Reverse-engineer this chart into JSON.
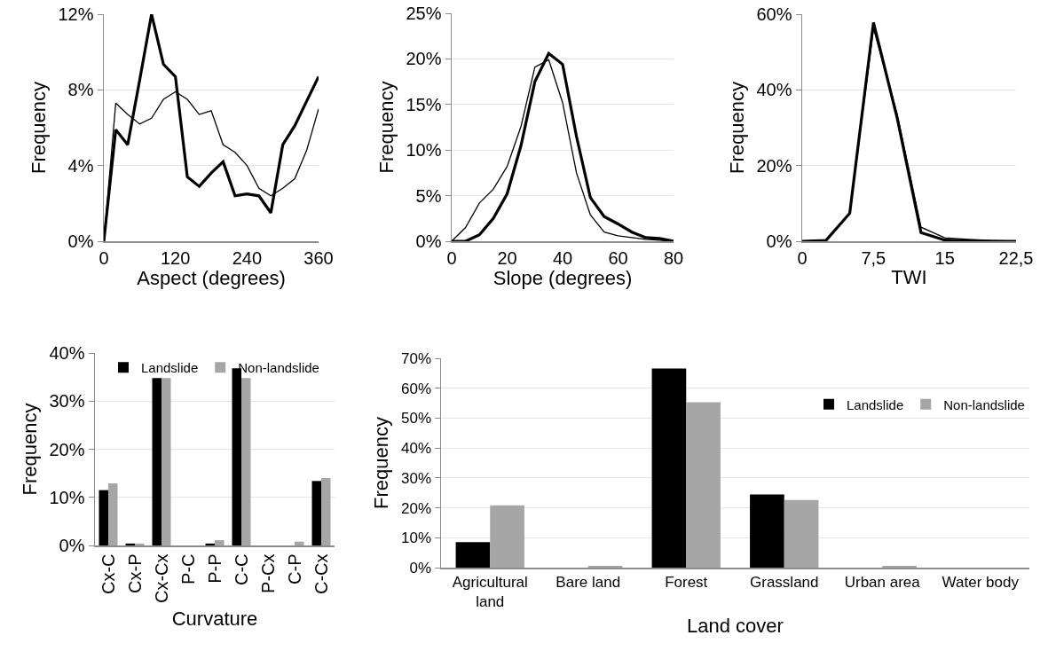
{
  "chart_data": [
    {
      "type": "line",
      "xlabel": "Aspect (degrees)",
      "ylabel": "Frequency",
      "grid": "y",
      "legend": false,
      "x": [
        0,
        20,
        40,
        60,
        80,
        100,
        120,
        140,
        160,
        180,
        200,
        220,
        240,
        260,
        280,
        300,
        320,
        340,
        360
      ],
      "xlim": [
        0,
        360
      ],
      "xticks": [
        0,
        120,
        240,
        360
      ],
      "ylim": [
        0,
        12
      ],
      "yticks": [
        {
          "value": 0,
          "label": "0%"
        },
        {
          "value": 4,
          "label": "4%"
        },
        {
          "value": 8,
          "label": "8%"
        },
        {
          "value": 12,
          "label": "12%"
        }
      ],
      "series": [
        {
          "color": "#000000",
          "values": [
            0,
            5.9,
            5.1,
            8.5,
            12.0,
            9.35,
            8.7,
            3.4,
            2.9,
            3.6,
            4.2,
            2.4,
            2.5,
            2.4,
            1.5,
            5.1,
            6.1,
            7.4,
            8.7
          ]
        },
        {
          "color": "#000000",
          "values": [
            0,
            7.3,
            6.7,
            6.2,
            6.5,
            7.5,
            7.9,
            7.5,
            6.7,
            6.9,
            5.1,
            4.7,
            4.0,
            2.8,
            2.4,
            2.8,
            3.3,
            4.8,
            7.0
          ]
        }
      ]
    },
    {
      "type": "line",
      "xlabel": "Slope (degrees)",
      "ylabel": "Frequency",
      "grid": "y",
      "legend": false,
      "x": [
        0,
        5,
        10,
        15,
        20,
        25,
        30,
        35,
        40,
        45,
        50,
        55,
        60,
        65,
        70,
        75,
        80
      ],
      "xlim": [
        0,
        80
      ],
      "xticks": [
        0,
        20,
        40,
        60,
        80
      ],
      "ylim": [
        0,
        25
      ],
      "yticks": [
        {
          "value": 0,
          "label": "0%"
        },
        {
          "value": 5,
          "label": "5%"
        },
        {
          "value": 10,
          "label": "10%"
        },
        {
          "value": 15,
          "label": "15%"
        },
        {
          "value": 20,
          "label": "20%"
        },
        {
          "value": 25,
          "label": "25%"
        }
      ],
      "series": [
        {
          "color": "#000000",
          "values": [
            0,
            0,
            0.7,
            2.5,
            5.2,
            10.5,
            17.5,
            20.6,
            19.4,
            11.5,
            4.8,
            2.7,
            1.9,
            1.0,
            0.4,
            0.3,
            0
          ]
        },
        {
          "color": "#000000",
          "values": [
            0,
            1.5,
            4.2,
            5.7,
            8.2,
            12.6,
            19.1,
            19.9,
            15.2,
            7.5,
            2.9,
            1.0,
            0.6,
            0.4,
            0.2,
            0.1,
            0
          ]
        }
      ]
    },
    {
      "type": "line",
      "xlabel": "TWI",
      "ylabel": "Frequency",
      "grid": "y",
      "legend": false,
      "x": [
        0,
        2.5,
        5,
        7.5,
        10,
        12.5,
        15,
        17.5,
        20,
        22.5
      ],
      "xlim": [
        0,
        22.5
      ],
      "xticks": [
        0,
        {
          "value": 7.5,
          "label": "7,5"
        },
        15,
        {
          "value": 22.5,
          "label": "22,5"
        }
      ],
      "ylim": [
        0,
        60
      ],
      "yticks": [
        {
          "value": 0,
          "label": "0%"
        },
        {
          "value": 20,
          "label": "20%"
        },
        {
          "value": 40,
          "label": "40%"
        },
        {
          "value": 60,
          "label": "60%"
        }
      ],
      "series": [
        {
          "color": "#000000",
          "values": [
            0,
            0.2,
            7.4,
            57.8,
            32.5,
            2.3,
            0.3,
            0.1,
            0,
            0
          ]
        },
        {
          "color": "#000000",
          "values": [
            0,
            0.2,
            7.4,
            56.3,
            33.5,
            3.7,
            0.9,
            0.5,
            0.2,
            0
          ]
        }
      ]
    },
    {
      "type": "bar",
      "xlabel": "Curvature",
      "ylabel": "Frequency",
      "grid": "y",
      "legend": "top",
      "categories": [
        "Cx-C",
        "Cx-P",
        "Cx-Cx",
        "P-C",
        "P-P",
        "C-C",
        "P-Cx",
        "C-P",
        "C-Cx"
      ],
      "ylim": [
        0,
        40
      ],
      "yticks": [
        {
          "value": 0,
          "label": "0%"
        },
        {
          "value": 10,
          "label": "10%"
        },
        {
          "value": 20,
          "label": "20%"
        },
        {
          "value": 30,
          "label": "30%"
        },
        {
          "value": 40,
          "label": "40%"
        }
      ],
      "series": [
        {
          "name": "Landslide",
          "color": "#000000",
          "values": [
            11.5,
            0.4,
            34.8,
            0,
            0.4,
            36.8,
            0,
            0,
            13.4
          ]
        },
        {
          "name": "Non-landslide",
          "color": "#a6a6a6",
          "values": [
            12.9,
            0.4,
            34.8,
            0,
            1.1,
            34.8,
            0,
            0.8,
            14.0
          ]
        }
      ]
    },
    {
      "type": "bar",
      "xlabel": "Land cover",
      "ylabel": "Frequency",
      "grid": "y",
      "legend": "right",
      "categories": [
        "Agricultural land",
        "Bare land",
        "Forest",
        "Grassland",
        "Urban area",
        "Water body"
      ],
      "ylim": [
        0,
        70
      ],
      "yticks": [
        {
          "value": 0,
          "label": "0%"
        },
        {
          "value": 10,
          "label": "10%"
        },
        {
          "value": 20,
          "label": "20%"
        },
        {
          "value": 30,
          "label": "30%"
        },
        {
          "value": 40,
          "label": "40%"
        },
        {
          "value": 50,
          "label": "50%"
        },
        {
          "value": 60,
          "label": "60%"
        },
        {
          "value": 70,
          "label": "70%"
        }
      ],
      "series": [
        {
          "name": "Landslide",
          "color": "#000000",
          "values": [
            8.5,
            null,
            66.6,
            24.5,
            0,
            0
          ]
        },
        {
          "name": "Non-landslide",
          "color": "#a6a6a6",
          "values": [
            20.8,
            0.6,
            55.3,
            22.6,
            0.6,
            null
          ]
        }
      ]
    }
  ]
}
